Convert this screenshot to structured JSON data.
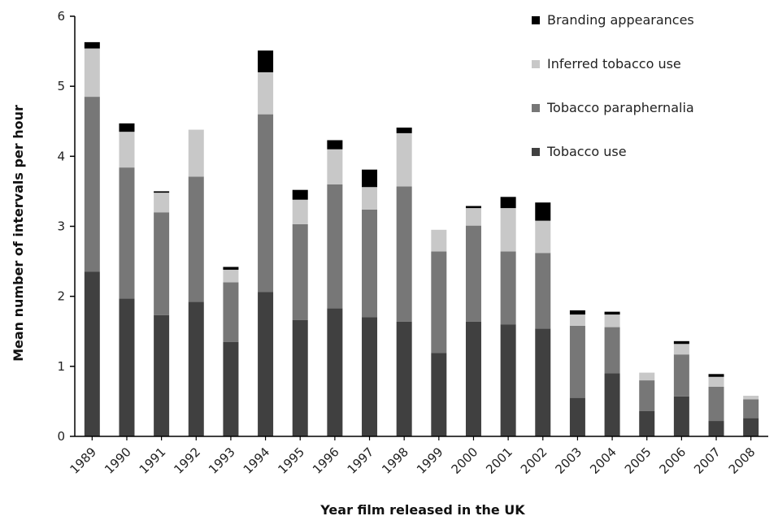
{
  "chart_data": {
    "type": "bar",
    "stacked": true,
    "ylabel": "Mean number of intervals per hour",
    "xlabel": "Year  film released in the UK",
    "ylim": [
      0,
      6
    ],
    "yticks": [
      0,
      1,
      2,
      3,
      4,
      5,
      6
    ],
    "grid": false,
    "legend_position": "top-right",
    "categories": [
      "1989",
      "1990",
      "1991",
      "1992",
      "1993",
      "1994",
      "1995",
      "1996",
      "1997",
      "1998",
      "1999",
      "2000",
      "2001",
      "2002",
      "2003",
      "2004",
      "2005",
      "2006",
      "2007",
      "2008"
    ],
    "series": [
      {
        "name": "Tobacco use",
        "color": "#404040",
        "values": [
          2.35,
          1.97,
          1.73,
          1.92,
          1.35,
          2.06,
          1.66,
          1.83,
          1.7,
          1.64,
          1.19,
          1.64,
          1.6,
          1.54,
          0.55,
          0.9,
          0.36,
          0.57,
          0.22,
          0.26
        ]
      },
      {
        "name": "Tobacco paraphernalia",
        "color": "#777777",
        "values": [
          2.5,
          1.87,
          1.47,
          1.79,
          0.85,
          2.54,
          1.37,
          1.77,
          1.54,
          1.93,
          1.45,
          1.37,
          1.04,
          1.08,
          1.03,
          0.66,
          0.44,
          0.6,
          0.49,
          0.27
        ]
      },
      {
        "name": "Inferred tobacco use",
        "color": "#c8c8c8",
        "values": [
          0.69,
          0.51,
          0.28,
          0.67,
          0.18,
          0.6,
          0.35,
          0.5,
          0.32,
          0.76,
          0.31,
          0.25,
          0.62,
          0.46,
          0.16,
          0.18,
          0.11,
          0.15,
          0.14,
          0.05
        ]
      },
      {
        "name": "Branding appearances",
        "color": "#000000",
        "values": [
          0.09,
          0.12,
          0.02,
          0.0,
          0.04,
          0.31,
          0.14,
          0.13,
          0.25,
          0.08,
          0.0,
          0.03,
          0.16,
          0.26,
          0.06,
          0.04,
          0.0,
          0.04,
          0.04,
          0.0
        ]
      }
    ],
    "legend_order": [
      "Branding appearances",
      "Inferred tobacco use",
      "Tobacco paraphernalia",
      "Tobacco use"
    ]
  }
}
